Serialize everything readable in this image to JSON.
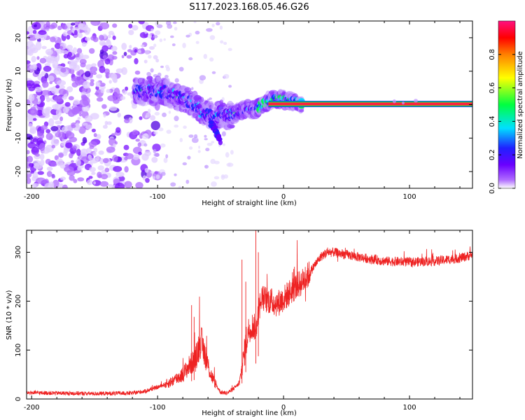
{
  "figure_title": "S117.2023.168.05.46.G26",
  "chart_data": [
    {
      "type": "heatmap",
      "title": "",
      "xlabel": "Height of straight line (km)",
      "ylabel": "Frequency (Hz)",
      "xlim": [
        -204,
        150
      ],
      "ylim": [
        -25,
        25
      ],
      "xticks": [
        -200,
        -100,
        0,
        100
      ],
      "yticks": [
        -20,
        -10,
        0,
        10,
        20
      ],
      "colorbar": {
        "label": "Normalized spectral amplitude",
        "range": [
          0,
          1
        ],
        "ticks": [
          0.0,
          0.2,
          0.4,
          0.6,
          0.8
        ],
        "colormap": [
          "#ffffff",
          "#b06cff",
          "#6a00ff",
          "#2020ff",
          "#00e0ff",
          "#00ff40",
          "#ffff00",
          "#ff8000",
          "#ff0000",
          "#ff1080"
        ]
      },
      "ridge": {
        "note": "frequency of maximum spectral amplitude vs height",
        "x": [
          -115,
          -105,
          -95,
          -85,
          -75,
          -65,
          -55,
          -50,
          -45,
          -40,
          -35,
          -30,
          -25,
          -20,
          -15,
          -10,
          -5,
          0,
          5,
          10,
          15,
          20,
          50,
          100,
          150
        ],
        "y": [
          4,
          4,
          4,
          2.5,
          1,
          -2,
          -4,
          -2.5,
          -3.5,
          -3,
          -2,
          -1.5,
          -1.5,
          -1,
          0.5,
          1.5,
          1.5,
          1.8,
          1,
          0.8,
          0.2,
          0.2,
          0.2,
          0.2,
          0.2
        ]
      },
      "branch": {
        "x": [
          -58,
          -55,
          -52,
          -50
        ],
        "y": [
          -5,
          -7,
          -9,
          -11
        ]
      },
      "noise_region_x": [
        -204,
        -110
      ]
    },
    {
      "type": "line",
      "title": "",
      "xlabel": "Height of straight line (km)",
      "ylabel": "SNR (10 * v/v)",
      "xlim": [
        -204,
        150
      ],
      "ylim": [
        0,
        345
      ],
      "xticks": [
        -200,
        -100,
        0,
        100
      ],
      "yticks": [
        0,
        100,
        200,
        300
      ],
      "series": [
        {
          "name": "SNR",
          "color": "#ee2222",
          "x": [
            -204,
            -180,
            -150,
            -120,
            -110,
            -100,
            -90,
            -80,
            -75,
            -70,
            -66,
            -62,
            -58,
            -54,
            -50,
            -45,
            -40,
            -35,
            -32,
            -28,
            -25,
            -22,
            -20,
            -18,
            -15,
            -10,
            -5,
            0,
            5,
            10,
            15,
            20,
            25,
            30,
            35,
            40,
            60,
            80,
            100,
            120,
            140,
            150
          ],
          "y": [
            13,
            12,
            11,
            12,
            16,
            24,
            34,
            50,
            68,
            80,
            120,
            88,
            52,
            30,
            14,
            12,
            20,
            32,
            80,
            140,
            150,
            145,
            175,
            205,
            205,
            200,
            195,
            205,
            218,
            230,
            240,
            255,
            275,
            292,
            300,
            300,
            290,
            282,
            280,
            282,
            288,
            295
          ]
        }
      ],
      "spikes": [
        {
          "x": -73,
          "y": 192
        },
        {
          "x": -71,
          "y": 168
        },
        {
          "x": -33,
          "y": 285
        },
        {
          "x": -30,
          "y": 240
        },
        {
          "x": -22,
          "y": 345
        },
        {
          "x": -20,
          "y": 300
        }
      ]
    }
  ]
}
